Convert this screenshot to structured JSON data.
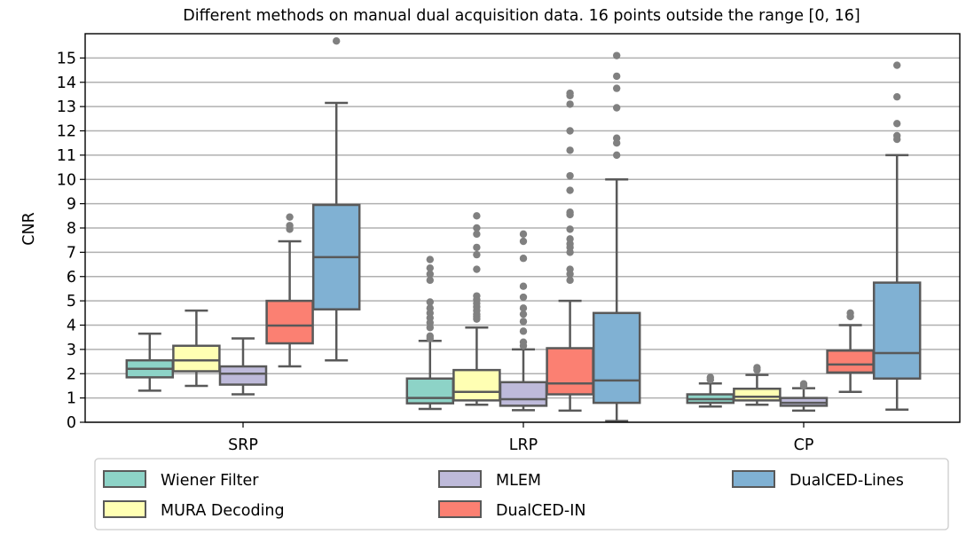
{
  "chart_data": {
    "type": "box",
    "title": "Different methods on manual dual acquisition data. 16 points outside the range [0, 16]",
    "xlabel": "",
    "ylabel": "CNR",
    "ylim": [
      0,
      16
    ],
    "yticks": [
      0,
      1,
      2,
      3,
      4,
      5,
      6,
      7,
      8,
      9,
      10,
      11,
      12,
      13,
      14,
      15
    ],
    "grid": "horizontal",
    "categories": [
      "SRP",
      "LRP",
      "CP"
    ],
    "legend_position": "bottom",
    "series": [
      {
        "name": "Wiener Filter",
        "color": "#8dd3c7",
        "boxes": [
          {
            "whislo": 1.3,
            "q1": 1.85,
            "median": 2.2,
            "q3": 2.55,
            "whishi": 3.65,
            "fliers": []
          },
          {
            "whislo": 0.55,
            "q1": 0.78,
            "median": 1.0,
            "q3": 1.8,
            "whishi": 3.35,
            "fliers": [
              3.45,
              3.55,
              3.9,
              4.1,
              4.3,
              4.5,
              4.7,
              4.95,
              5.85,
              6.1,
              6.35,
              6.7
            ]
          },
          {
            "whislo": 0.65,
            "q1": 0.8,
            "median": 0.95,
            "q3": 1.15,
            "whishi": 1.6,
            "fliers": [
              1.75,
              1.85
            ]
          }
        ]
      },
      {
        "name": "MURA Decoding",
        "color": "#ffffb3",
        "boxes": [
          {
            "whislo": 1.5,
            "q1": 2.1,
            "median": 2.55,
            "q3": 3.15,
            "whishi": 4.6,
            "fliers": []
          },
          {
            "whislo": 0.72,
            "q1": 0.9,
            "median": 1.25,
            "q3": 2.15,
            "whishi": 3.9,
            "fliers": [
              4.25,
              4.35,
              4.45,
              4.6,
              4.75,
              4.9,
              5.05,
              5.2,
              6.3,
              6.9,
              7.2,
              7.75,
              8.0,
              8.5
            ]
          },
          {
            "whislo": 0.72,
            "q1": 0.9,
            "median": 1.05,
            "q3": 1.38,
            "whishi": 1.95,
            "fliers": [
              2.15,
              2.25
            ]
          }
        ]
      },
      {
        "name": "MLEM",
        "color": "#bebada",
        "boxes": [
          {
            "whislo": 1.15,
            "q1": 1.55,
            "median": 2.0,
            "q3": 2.3,
            "whishi": 3.45,
            "fliers": []
          },
          {
            "whislo": 0.5,
            "q1": 0.68,
            "median": 0.95,
            "q3": 1.65,
            "whishi": 3.0,
            "fliers": [
              3.15,
              3.3,
              3.75,
              4.15,
              4.45,
              4.7,
              5.15,
              5.6,
              6.75,
              7.45,
              7.75
            ]
          },
          {
            "whislo": 0.48,
            "q1": 0.68,
            "median": 0.8,
            "q3": 1.0,
            "whishi": 1.4,
            "fliers": [
              1.5,
              1.58
            ]
          }
        ]
      },
      {
        "name": "DualCED-IN",
        "color": "#fb8072",
        "boxes": [
          {
            "whislo": 2.3,
            "q1": 3.25,
            "median": 3.98,
            "q3": 5.0,
            "whishi": 7.45,
            "fliers": [
              7.95,
              8.1,
              8.45
            ]
          },
          {
            "whislo": 0.48,
            "q1": 1.15,
            "median": 1.6,
            "q3": 3.05,
            "whishi": 5.0,
            "fliers": [
              5.85,
              6.1,
              6.3,
              7.0,
              7.2,
              7.35,
              7.55,
              7.95,
              8.55,
              8.65,
              9.55,
              10.15,
              11.2,
              12.0,
              13.1,
              13.45,
              13.55
            ]
          },
          {
            "whislo": 1.25,
            "q1": 2.05,
            "median": 2.38,
            "q3": 2.95,
            "whishi": 4.0,
            "fliers": [
              4.35,
              4.5
            ]
          }
        ]
      },
      {
        "name": "DualCED-Lines",
        "color": "#80b1d3",
        "boxes": [
          {
            "whislo": 2.55,
            "q1": 4.65,
            "median": 6.8,
            "q3": 8.95,
            "whishi": 13.15,
            "fliers": [
              15.7
            ]
          },
          {
            "whislo": 0.05,
            "q1": 0.8,
            "median": 1.72,
            "q3": 4.5,
            "whishi": 10.0,
            "fliers": [
              11.0,
              11.5,
              11.7,
              12.95,
              13.75,
              14.25,
              15.1
            ]
          },
          {
            "whislo": 0.52,
            "q1": 1.8,
            "median": 2.85,
            "q3": 5.75,
            "whishi": 11.0,
            "fliers": [
              11.65,
              11.8,
              12.3,
              13.4,
              14.7
            ]
          }
        ]
      }
    ]
  }
}
